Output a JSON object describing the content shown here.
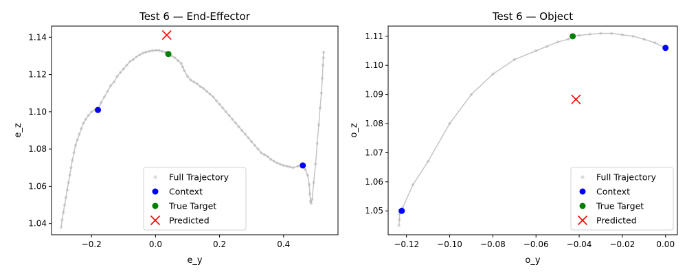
{
  "chart_data": [
    {
      "type": "scatter",
      "title": "Test 6 — End-Effector",
      "xlabel": "e_y",
      "ylabel": "e_z",
      "xlim": [
        -0.325,
        0.57
      ],
      "ylim": [
        1.034,
        1.146
      ],
      "xticks": [
        -0.2,
        0.0,
        0.2,
        0.4
      ],
      "xtick_labels": [
        "−0.2",
        "0.0",
        "0.2",
        "0.4"
      ],
      "yticks": [
        1.04,
        1.06,
        1.08,
        1.1,
        1.12,
        1.14
      ],
      "ytick_labels": [
        "1.04",
        "1.06",
        "1.08",
        "1.10",
        "1.12",
        "1.14"
      ],
      "grid": false,
      "legend_position": "lower-right",
      "series": [
        {
          "name": "Full Trajectory",
          "kind": "trajectory",
          "color": "#b0b0b0",
          "points": [
            [
              -0.295,
              1.038
            ],
            [
              -0.292,
              1.042
            ],
            [
              -0.288,
              1.046
            ],
            [
              -0.284,
              1.05
            ],
            [
              -0.28,
              1.054
            ],
            [
              -0.276,
              1.058
            ],
            [
              -0.272,
              1.062
            ],
            [
              -0.268,
              1.066
            ],
            [
              -0.264,
              1.07
            ],
            [
              -0.26,
              1.074
            ],
            [
              -0.255,
              1.078
            ],
            [
              -0.25,
              1.082
            ],
            [
              -0.244,
              1.085
            ],
            [
              -0.238,
              1.088
            ],
            [
              -0.232,
              1.091
            ],
            [
              -0.225,
              1.094
            ],
            [
              -0.218,
              1.096
            ],
            [
              -0.21,
              1.098
            ],
            [
              -0.2,
              1.1
            ],
            [
              -0.19,
              1.101
            ],
            [
              -0.18,
              1.101
            ],
            [
              -0.17,
              1.105
            ],
            [
              -0.16,
              1.108
            ],
            [
              -0.15,
              1.111
            ],
            [
              -0.14,
              1.114
            ],
            [
              -0.13,
              1.116
            ],
            [
              -0.12,
              1.119
            ],
            [
              -0.11,
              1.121
            ],
            [
              -0.1,
              1.123
            ],
            [
              -0.09,
              1.125
            ],
            [
              -0.08,
              1.127
            ],
            [
              -0.07,
              1.128
            ],
            [
              -0.06,
              1.1295
            ],
            [
              -0.05,
              1.1305
            ],
            [
              -0.04,
              1.1315
            ],
            [
              -0.03,
              1.132
            ],
            [
              -0.02,
              1.1325
            ],
            [
              -0.01,
              1.1328
            ],
            [
              0.0,
              1.133
            ],
            [
              0.01,
              1.133
            ],
            [
              0.02,
              1.1325
            ],
            [
              0.03,
              1.132
            ],
            [
              0.04,
              1.131
            ],
            [
              0.05,
              1.13
            ],
            [
              0.06,
              1.129
            ],
            [
              0.07,
              1.1275
            ],
            [
              0.08,
              1.126
            ],
            [
              0.085,
              1.124
            ],
            [
              0.09,
              1.122
            ],
            [
              0.1,
              1.119
            ],
            [
              0.11,
              1.117
            ],
            [
              0.12,
              1.116
            ],
            [
              0.13,
              1.115
            ],
            [
              0.14,
              1.1135
            ],
            [
              0.15,
              1.1125
            ],
            [
              0.16,
              1.111
            ],
            [
              0.17,
              1.1095
            ],
            [
              0.18,
              1.108
            ],
            [
              0.19,
              1.106
            ],
            [
              0.2,
              1.104
            ],
            [
              0.21,
              1.102
            ],
            [
              0.22,
              1.1
            ],
            [
              0.23,
              1.098
            ],
            [
              0.24,
              1.096
            ],
            [
              0.25,
              1.094
            ],
            [
              0.26,
              1.092
            ],
            [
              0.27,
              1.09
            ],
            [
              0.28,
              1.088
            ],
            [
              0.29,
              1.086
            ],
            [
              0.3,
              1.084
            ],
            [
              0.31,
              1.082
            ],
            [
              0.32,
              1.08
            ],
            [
              0.33,
              1.078
            ],
            [
              0.34,
              1.077
            ],
            [
              0.35,
              1.076
            ],
            [
              0.36,
              1.0745
            ],
            [
              0.37,
              1.0735
            ],
            [
              0.38,
              1.0725
            ],
            [
              0.39,
              1.0718
            ],
            [
              0.4,
              1.0712
            ],
            [
              0.41,
              1.0708
            ],
            [
              0.42,
              1.0704
            ],
            [
              0.43,
              1.07
            ],
            [
              0.445,
              1.0708
            ],
            [
              0.46,
              1.0712
            ],
            [
              0.468,
              1.069
            ],
            [
              0.475,
              1.066
            ],
            [
              0.48,
              1.061
            ],
            [
              0.482,
              1.056
            ],
            [
              0.484,
              1.052
            ],
            [
              0.486,
              1.051
            ],
            [
              0.489,
              1.053
            ],
            [
              0.494,
              1.062
            ],
            [
              0.5,
              1.072
            ],
            [
              0.505,
              1.083
            ],
            [
              0.51,
              1.093
            ],
            [
              0.514,
              1.102
            ],
            [
              0.518,
              1.11
            ],
            [
              0.521,
              1.118
            ],
            [
              0.523,
              1.125
            ],
            [
              0.524,
              1.129
            ],
            [
              0.525,
              1.132
            ]
          ]
        },
        {
          "name": "Context",
          "kind": "dot",
          "color": "#0000ff",
          "points": [
            [
              -0.18,
              1.101
            ],
            [
              0.46,
              1.0712
            ]
          ]
        },
        {
          "name": "True Target",
          "kind": "dot",
          "color": "#008000",
          "points": [
            [
              0.04,
              1.131
            ]
          ]
        },
        {
          "name": "Predicted",
          "kind": "cross",
          "color": "#ff0000",
          "points": [
            [
              0.035,
              1.1412
            ]
          ]
        }
      ]
    },
    {
      "type": "scatter",
      "title": "Test 6 — Object",
      "xlabel": "o_y",
      "ylabel": "o_z",
      "xlim": [
        -0.1285,
        0.0055
      ],
      "ylim": [
        1.0418,
        1.1135
      ],
      "xticks": [
        -0.12,
        -0.1,
        -0.08,
        -0.06,
        -0.04,
        -0.02,
        0.0
      ],
      "xtick_labels": [
        "−0.12",
        "−0.10",
        "−0.08",
        "−0.06",
        "−0.04",
        "−0.02",
        "0.00"
      ],
      "yticks": [
        1.05,
        1.06,
        1.07,
        1.08,
        1.09,
        1.1,
        1.11
      ],
      "ytick_labels": [
        "1.05",
        "1.06",
        "1.07",
        "1.08",
        "1.09",
        "1.10",
        "1.11"
      ],
      "grid": false,
      "legend_position": "lower-right",
      "series": [
        {
          "name": "Full Trajectory",
          "kind": "trajectory",
          "color": "#b0b0b0",
          "points": [
            [
              -0.1235,
              1.045
            ],
            [
              -0.1233,
              1.047
            ],
            [
              -0.1232,
              1.049
            ],
            [
              -0.1234,
              1.05
            ],
            [
              -0.1228,
              1.05
            ],
            [
              -0.1222,
              1.05
            ],
            [
              -0.1218,
              1.051
            ],
            [
              -0.117,
              1.059
            ],
            [
              -0.11,
              1.067
            ],
            [
              -0.1,
              1.08
            ],
            [
              -0.09,
              1.09
            ],
            [
              -0.08,
              1.097
            ],
            [
              -0.07,
              1.102
            ],
            [
              -0.06,
              1.105
            ],
            [
              -0.055,
              1.1065
            ],
            [
              -0.05,
              1.108
            ],
            [
              -0.045,
              1.109
            ],
            [
              -0.043,
              1.11
            ],
            [
              -0.04,
              1.1103
            ],
            [
              -0.035,
              1.1107
            ],
            [
              -0.03,
              1.111
            ],
            [
              -0.025,
              1.111
            ],
            [
              -0.02,
              1.1105
            ],
            [
              -0.015,
              1.11
            ],
            [
              -0.01,
              1.109
            ],
            [
              -0.005,
              1.1078
            ],
            [
              0.0,
              1.106
            ]
          ]
        },
        {
          "name": "Context",
          "kind": "dot",
          "color": "#0000ff",
          "points": [
            [
              -0.1222,
              1.05
            ],
            [
              0.0,
              1.106
            ]
          ]
        },
        {
          "name": "True Target",
          "kind": "dot",
          "color": "#008000",
          "points": [
            [
              -0.043,
              1.11
            ]
          ]
        },
        {
          "name": "Predicted",
          "kind": "cross",
          "color": "#ff0000",
          "points": [
            [
              -0.0415,
              1.0883
            ]
          ]
        }
      ]
    }
  ]
}
